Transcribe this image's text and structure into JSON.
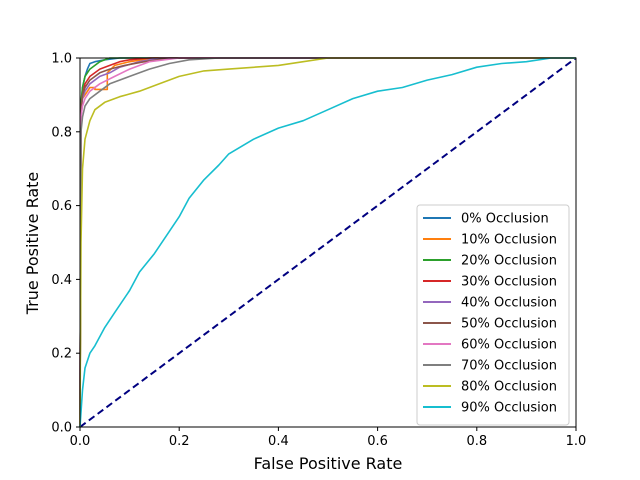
{
  "chart_data": {
    "type": "line",
    "title": "",
    "xlabel": "False Positive Rate",
    "ylabel": "True Positive Rate",
    "xlim": [
      0.0,
      1.0
    ],
    "ylim": [
      0.0,
      1.0
    ],
    "x_ticks": [
      "0.0",
      "0.2",
      "0.4",
      "0.6",
      "0.8",
      "1.0"
    ],
    "y_ticks": [
      "0.0",
      "0.2",
      "0.4",
      "0.6",
      "0.8",
      "1.0"
    ],
    "grid": false,
    "legend_position": "lower-right",
    "reference_line": {
      "x": [
        0,
        1
      ],
      "y": [
        0,
        1
      ],
      "color": "#000080",
      "style": "dashed"
    },
    "series": [
      {
        "name": "0% Occlusion",
        "color": "#1f77b4",
        "x": [
          0,
          0.002,
          0.005,
          0.01,
          0.015,
          0.02,
          0.03,
          0.05,
          0.08,
          0.12,
          1.0
        ],
        "y": [
          0,
          0.86,
          0.92,
          0.95,
          0.97,
          0.985,
          0.99,
          0.995,
          1.0,
          1.0,
          1.0
        ]
      },
      {
        "name": "10% Occlusion",
        "color": "#ff7f0e",
        "x": [
          0,
          0.002,
          0.005,
          0.01,
          0.02,
          0.03,
          0.03,
          0.055,
          0.055,
          0.07,
          0.1,
          0.15,
          1.0
        ],
        "y": [
          0,
          0.86,
          0.89,
          0.9,
          0.92,
          0.92,
          0.915,
          0.915,
          0.96,
          0.98,
          0.99,
          1.0,
          1.0
        ]
      },
      {
        "name": "20% Occlusion",
        "color": "#2ca02c",
        "x": [
          0,
          0.002,
          0.005,
          0.01,
          0.02,
          0.03,
          0.04,
          0.05,
          0.06,
          0.08,
          1.0
        ],
        "y": [
          0,
          0.88,
          0.92,
          0.95,
          0.97,
          0.98,
          0.99,
          0.995,
          1.0,
          1.0,
          1.0
        ]
      },
      {
        "name": "30% Occlusion",
        "color": "#d62728",
        "x": [
          0,
          0.002,
          0.005,
          0.01,
          0.02,
          0.04,
          0.06,
          0.08,
          0.1,
          0.14,
          1.0
        ],
        "y": [
          0,
          0.86,
          0.9,
          0.93,
          0.95,
          0.97,
          0.98,
          0.99,
          0.995,
          1.0,
          1.0
        ]
      },
      {
        "name": "40% Occlusion",
        "color": "#9467bd",
        "x": [
          0,
          0.002,
          0.005,
          0.01,
          0.02,
          0.04,
          0.06,
          0.08,
          0.12,
          0.16,
          1.0
        ],
        "y": [
          0,
          0.86,
          0.89,
          0.91,
          0.93,
          0.95,
          0.96,
          0.975,
          0.99,
          1.0,
          1.0
        ]
      },
      {
        "name": "50% Occlusion",
        "color": "#8c564b",
        "x": [
          0,
          0.002,
          0.005,
          0.01,
          0.02,
          0.04,
          0.06,
          0.09,
          0.13,
          0.18,
          1.0
        ],
        "y": [
          0,
          0.86,
          0.9,
          0.92,
          0.94,
          0.96,
          0.97,
          0.98,
          0.99,
          1.0,
          1.0
        ]
      },
      {
        "name": "60% Occlusion",
        "color": "#e377c2",
        "x": [
          0,
          0.002,
          0.005,
          0.01,
          0.02,
          0.04,
          0.07,
          0.1,
          0.14,
          0.2,
          1.0
        ],
        "y": [
          0,
          0.84,
          0.87,
          0.89,
          0.91,
          0.93,
          0.95,
          0.97,
          0.99,
          1.0,
          1.0
        ]
      },
      {
        "name": "70% Occlusion",
        "color": "#7f7f7f",
        "x": [
          0,
          0.002,
          0.005,
          0.01,
          0.02,
          0.04,
          0.06,
          0.1,
          0.14,
          0.18,
          0.22,
          0.28,
          1.0
        ],
        "y": [
          0,
          0.8,
          0.84,
          0.87,
          0.89,
          0.91,
          0.93,
          0.95,
          0.97,
          0.985,
          0.995,
          1.0,
          1.0
        ]
      },
      {
        "name": "80% Occlusion",
        "color": "#bcbd22",
        "x": [
          0,
          0.002,
          0.005,
          0.01,
          0.02,
          0.03,
          0.05,
          0.08,
          0.12,
          0.16,
          0.2,
          0.25,
          0.3,
          0.4,
          0.45,
          0.5,
          0.6,
          1.0
        ],
        "y": [
          0,
          0.5,
          0.7,
          0.78,
          0.83,
          0.86,
          0.88,
          0.895,
          0.91,
          0.93,
          0.95,
          0.965,
          0.97,
          0.98,
          0.99,
          1.0,
          1.0,
          1.0
        ]
      },
      {
        "name": "90% Occlusion",
        "color": "#17becf",
        "x": [
          0,
          0.005,
          0.01,
          0.02,
          0.03,
          0.05,
          0.07,
          0.1,
          0.12,
          0.15,
          0.18,
          0.2,
          0.22,
          0.25,
          0.28,
          0.3,
          0.35,
          0.4,
          0.45,
          0.5,
          0.55,
          0.6,
          0.65,
          0.7,
          0.75,
          0.8,
          0.85,
          0.9,
          0.95,
          1.0
        ],
        "y": [
          0,
          0.1,
          0.16,
          0.2,
          0.22,
          0.27,
          0.31,
          0.37,
          0.42,
          0.47,
          0.53,
          0.57,
          0.62,
          0.67,
          0.71,
          0.74,
          0.78,
          0.81,
          0.83,
          0.86,
          0.89,
          0.91,
          0.92,
          0.94,
          0.955,
          0.975,
          0.985,
          0.99,
          1.0,
          1.0
        ]
      }
    ]
  }
}
